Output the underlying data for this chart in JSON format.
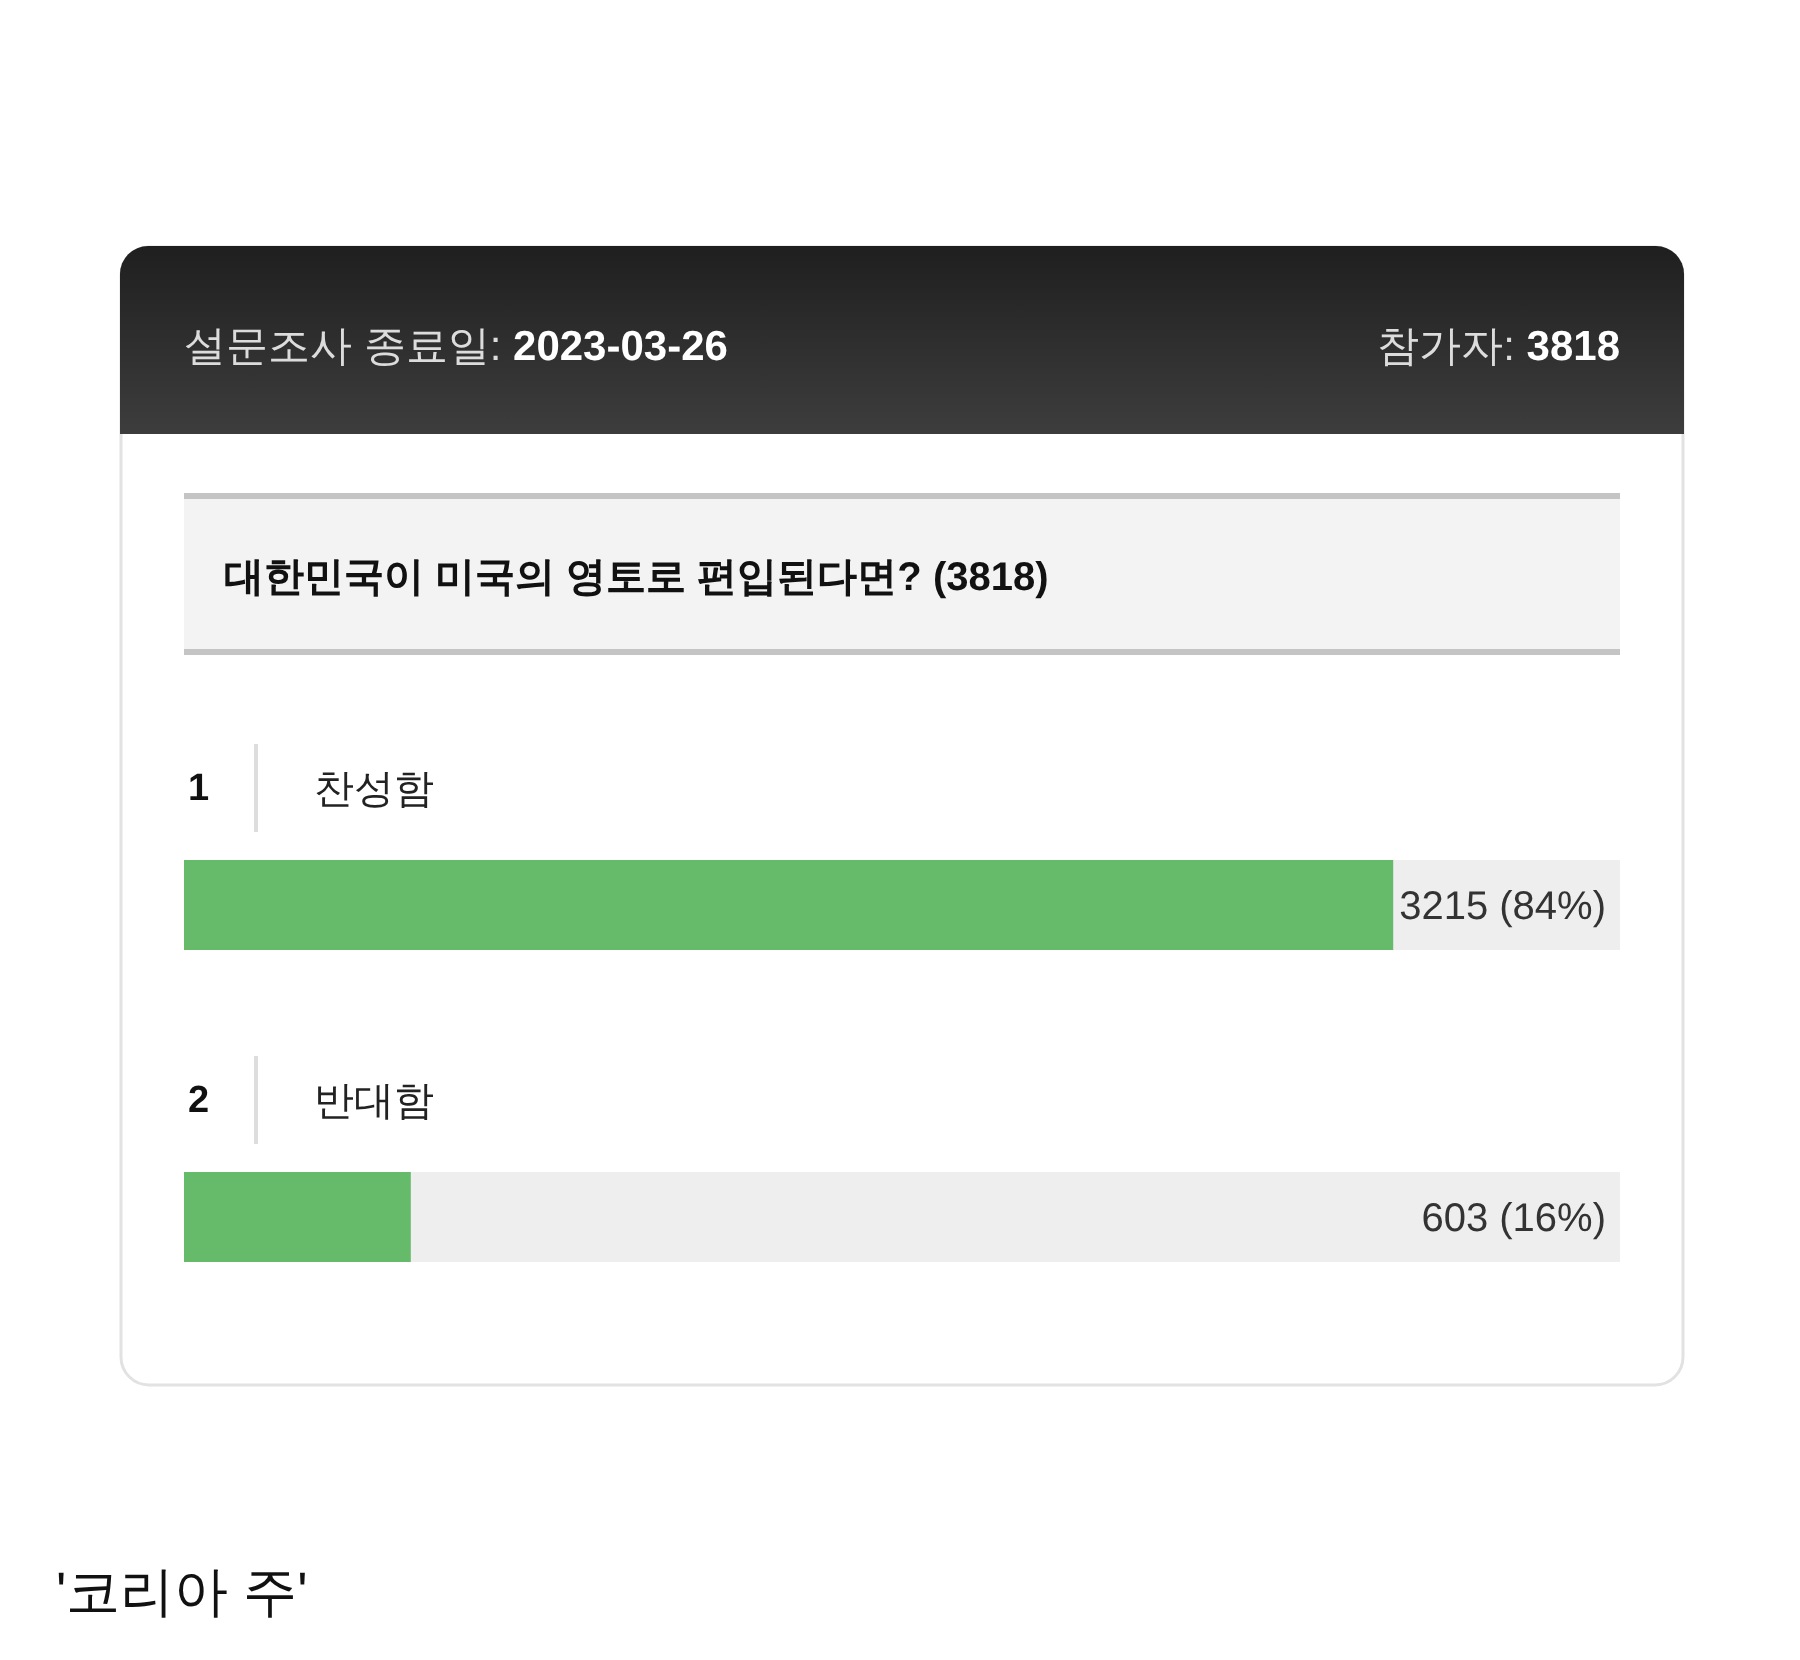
{
  "chart_data": {
    "type": "bar",
    "orientation": "horizontal",
    "title": "대한민국이 미국의 영토로 편입된다면? (3818)",
    "categories": [
      "찬성함",
      "반대함"
    ],
    "series": [
      {
        "color": "#66bb6a",
        "values": [
          3215,
          603
        ],
        "value_labels": [
          "3215 (84%)",
          "603 (16%)"
        ]
      }
    ],
    "xlim": [
      0,
      3818
    ],
    "tick_labels": false,
    "annotations": [
      "설문조사 종료일: 2023-03-26",
      "참가자: 3818",
      "1",
      "2",
      "'코리아 주'"
    ]
  }
}
